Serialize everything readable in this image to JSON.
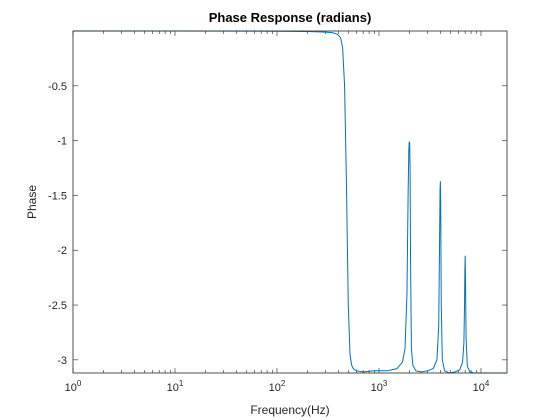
{
  "chart_data": {
    "type": "line",
    "title": "Phase Response (radians)",
    "xlabel": "Frequency(Hz)",
    "ylabel": "Phase",
    "x_scale": "log",
    "xlim": [
      1,
      18000
    ],
    "ylim": [
      -3.12,
      0
    ],
    "x_ticks": [
      {
        "value": 1,
        "base": "10",
        "exp": "0"
      },
      {
        "value": 10,
        "base": "10",
        "exp": "1"
      },
      {
        "value": 100,
        "base": "10",
        "exp": "2"
      },
      {
        "value": 1000,
        "base": "10",
        "exp": "3"
      },
      {
        "value": 10000,
        "base": "10",
        "exp": "4"
      }
    ],
    "y_ticks": [
      {
        "value": -0.5,
        "label": "-0.5"
      },
      {
        "value": -1,
        "label": "-1"
      },
      {
        "value": -1.5,
        "label": "-1.5"
      },
      {
        "value": -2,
        "label": "-2"
      },
      {
        "value": -2.5,
        "label": "-2.5"
      },
      {
        "value": -3,
        "label": "-3"
      }
    ],
    "grid": false,
    "line_color": "#0072bd",
    "series": [
      {
        "x": [
          1,
          10,
          100,
          200,
          300,
          350,
          390,
          420,
          440,
          460,
          480,
          500,
          520,
          540,
          560,
          600,
          700,
          900,
          1200,
          1500,
          1700,
          1800,
          1880,
          1930,
          1960,
          1980,
          2000,
          2020,
          2040,
          2080,
          2150,
          2300,
          2600,
          3000,
          3400,
          3700,
          3850,
          3930,
          3970,
          4000,
          4030,
          4080,
          4180,
          4400,
          4900,
          5600,
          6200,
          6600,
          6800,
          6900,
          6950,
          7000,
          7050,
          7150,
          7350,
          7800,
          8500,
          10000,
          13000,
          18000
        ],
        "y": [
          0,
          0,
          -0.002,
          -0.005,
          -0.01,
          -0.015,
          -0.03,
          -0.06,
          -0.15,
          -0.5,
          -1.4,
          -2.5,
          -2.95,
          -3.05,
          -3.08,
          -3.1,
          -3.11,
          -3.1,
          -3.1,
          -3.08,
          -3.02,
          -2.9,
          -2.4,
          -1.5,
          -1.1,
          -1.01,
          -1.02,
          -1.3,
          -2.1,
          -2.9,
          -3.05,
          -3.1,
          -3.11,
          -3.1,
          -3.08,
          -3.0,
          -2.7,
          -1.9,
          -1.45,
          -1.37,
          -1.6,
          -2.5,
          -3.0,
          -3.1,
          -3.12,
          -3.11,
          -3.09,
          -3.02,
          -2.85,
          -2.5,
          -2.2,
          -2.05,
          -2.25,
          -2.8,
          -3.06,
          -3.11,
          -3.12,
          -3.12,
          -3.12,
          -3.12
        ]
      }
    ]
  }
}
